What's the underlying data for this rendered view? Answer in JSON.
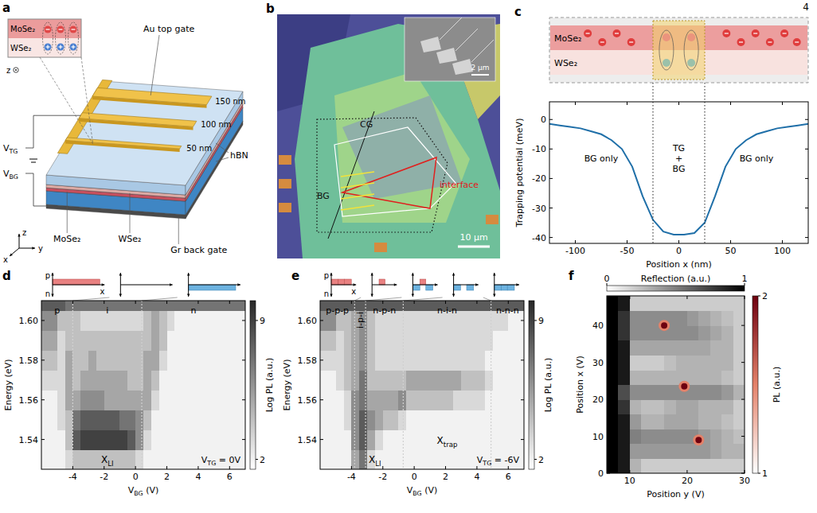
{
  "page_number": "4",
  "diagrams": {
    "a": {
      "panel": "a",
      "inset_layers": [
        "MoSe₂",
        "WSe₂"
      ],
      "inset_axis": "z",
      "gate": "Au top gate",
      "finger_widths": [
        "150 nm",
        "100 nm",
        "50 nm"
      ],
      "voltages": [
        {
          "base": "V",
          "sub": "TG"
        },
        {
          "base": "V",
          "sub": "BG"
        }
      ],
      "hbn": "hBN",
      "layers": [
        "MoSe₂",
        "WSe₂"
      ],
      "back_gate": "Gr back gate",
      "axes": [
        "x",
        "y",
        "z"
      ]
    },
    "b": {
      "panel": "b",
      "gates": [
        "CG",
        "BG"
      ],
      "interface": "interface",
      "scale_bar": "10 µm",
      "inset_scale_bar": "2 µm"
    }
  },
  "chart_data": [
    {
      "panel": "c",
      "type": "line",
      "x_label": "Position x (nm)",
      "y_label": "Trapping potential (meV)",
      "x": [
        -125,
        -115,
        -105,
        -95,
        -85,
        -75,
        -65,
        -55,
        -45,
        -35,
        -25,
        -15,
        -5,
        5,
        15,
        25,
        35,
        45,
        55,
        65,
        75,
        85,
        95,
        105,
        115,
        125
      ],
      "values": [
        -1.5,
        -2,
        -2.5,
        -3,
        -4,
        -5,
        -7,
        -10,
        -16,
        -26,
        -34,
        -38,
        -39,
        -39,
        -38.5,
        -35,
        -26,
        -16,
        -10,
        -7,
        -5,
        -4,
        -3,
        -2.5,
        -2,
        -1.5
      ],
      "color": "#1f6fa8",
      "xlim": [
        -125,
        125
      ],
      "xticks": [
        -100,
        -50,
        0,
        50,
        100
      ],
      "ylim": [
        -42,
        6
      ],
      "yticks": [
        -40,
        -30,
        -20,
        -10,
        0
      ],
      "dividers": [
        -25,
        25
      ],
      "region_labels": [
        "BG only",
        "TG + BG",
        "BG only"
      ],
      "schematic_layers": [
        "MoSe₂",
        "WSe₂"
      ]
    },
    {
      "panel": "d",
      "type": "heatmap",
      "x_label": {
        "base": "V",
        "sub": "BG",
        "rest": " (V)"
      },
      "y_label": "Energy (eV)",
      "xlim": [
        -6,
        7
      ],
      "xticks": [
        -4,
        -2,
        0,
        2,
        4,
        6
      ],
      "ylim": [
        1.525,
        1.61
      ],
      "yticks": [
        1.54,
        1.56,
        1.58,
        {
          "value": 1.6,
          "label": "1.60"
        }
      ],
      "x_bins": [
        -6,
        -5.5,
        -5,
        -4.5,
        -4,
        -3.5,
        -3,
        -2.5,
        -2,
        -1.5,
        -1,
        -0.5,
        0,
        0.5,
        1,
        1.5,
        2,
        2.5,
        3,
        3.5,
        4,
        4.5,
        5,
        5.5,
        6,
        6.5,
        7
      ],
      "y_bins": [
        1.525,
        1.535,
        1.545,
        1.555,
        1.565,
        1.575,
        1.585,
        1.595,
        1.605,
        1.61
      ],
      "cells": [
        [
          2,
          2,
          2,
          3,
          4,
          4,
          4,
          4,
          4,
          4,
          4,
          4,
          3,
          2,
          2,
          2,
          2,
          2,
          2,
          2,
          2,
          2,
          2,
          2,
          2,
          2
        ],
        [
          2,
          2,
          2,
          4,
          8,
          9,
          9,
          9,
          9,
          9,
          9,
          8,
          6,
          3,
          2,
          2,
          2,
          2,
          2,
          2,
          2,
          2,
          2,
          2,
          2,
          2
        ],
        [
          2,
          2,
          3,
          4,
          7,
          8,
          8,
          8,
          8,
          8,
          7,
          7,
          6,
          4,
          2,
          2,
          2,
          2,
          2,
          2,
          2,
          2,
          2,
          2,
          2,
          2
        ],
        [
          2,
          2,
          3,
          5,
          5,
          6,
          6,
          6,
          5,
          5,
          5,
          5,
          5,
          5,
          3,
          2,
          2,
          2,
          2,
          2,
          2,
          2,
          2,
          2,
          2,
          2
        ],
        [
          3,
          3,
          3,
          5,
          4,
          5,
          5,
          5,
          5,
          5,
          5,
          4,
          4,
          5,
          4,
          2,
          2,
          2,
          2,
          2,
          2,
          2,
          2,
          2,
          2,
          2
        ],
        [
          4,
          4,
          3,
          5,
          4,
          4,
          5,
          4,
          4,
          4,
          4,
          4,
          4,
          5,
          5,
          3,
          2,
          2,
          2,
          2,
          2,
          2,
          2,
          2,
          2,
          2
        ],
        [
          5,
          5,
          3,
          4,
          4,
          4,
          4,
          4,
          4,
          4,
          4,
          4,
          4,
          4,
          5,
          4,
          2,
          2,
          2,
          2,
          2,
          2,
          2,
          2,
          2,
          2
        ],
        [
          6,
          6,
          4,
          4,
          4,
          3,
          3,
          3,
          3,
          3,
          3,
          3,
          3,
          4,
          5,
          4,
          3,
          2,
          2,
          2,
          2,
          2,
          2,
          2,
          2,
          2
        ],
        [
          8,
          8,
          8,
          7,
          7,
          7,
          7,
          7,
          7,
          7,
          7,
          7,
          7,
          7,
          7,
          7,
          7,
          7,
          7,
          7,
          7,
          7,
          7,
          7,
          7,
          7
        ]
      ],
      "colorbar": {
        "label": "Log PL (a.u.)",
        "range": [
          1.5,
          10
        ],
        "ticks": [
          2,
          9
        ]
      },
      "dividers": [
        -4,
        0.4
      ],
      "region_labels": [
        "p",
        "i",
        "n"
      ],
      "peak_labels": [
        {
          "base": "X",
          "sub": "LI"
        }
      ],
      "gate_label": {
        "base": "V",
        "sub": "TG",
        "rest": " = 0V"
      },
      "inset_labels": [
        "p",
        "n",
        "x"
      ]
    },
    {
      "panel": "e",
      "type": "heatmap",
      "x_label": {
        "base": "V",
        "sub": "BG",
        "rest": " (V)"
      },
      "y_label": "Energy (eV)",
      "xlim": [
        -6,
        7
      ],
      "xticks": [
        -4,
        -2,
        0,
        2,
        4,
        6
      ],
      "ylim": [
        1.525,
        1.61
      ],
      "yticks": [
        1.54,
        1.56,
        1.58,
        {
          "value": 1.6,
          "label": "1.60"
        }
      ],
      "x_bins": [
        -6,
        -5.5,
        -5,
        -4.5,
        -4,
        -3.5,
        -3,
        -2.5,
        -2,
        -1.5,
        -1,
        -0.5,
        0,
        0.5,
        1,
        1.5,
        2,
        2.5,
        3,
        3.5,
        4,
        4.5,
        5,
        5.5,
        6,
        6.5,
        7
      ],
      "y_bins": [
        1.525,
        1.535,
        1.545,
        1.555,
        1.565,
        1.575,
        1.585,
        1.595,
        1.605,
        1.61
      ],
      "cells": [
        [
          2,
          2,
          2,
          2,
          5,
          7,
          3,
          2,
          2,
          2,
          2,
          2,
          2,
          2,
          2,
          2,
          2,
          2,
          2,
          2,
          2,
          2,
          2,
          2,
          2,
          2
        ],
        [
          2,
          2,
          2,
          2,
          6,
          8,
          5,
          3,
          2,
          2,
          2,
          2,
          2,
          2,
          2,
          2,
          2,
          2,
          2,
          2,
          2,
          2,
          2,
          2,
          2,
          2
        ],
        [
          2,
          2,
          2,
          3,
          6,
          8,
          6,
          5,
          4,
          4,
          3,
          2,
          2,
          2,
          2,
          2,
          2,
          2,
          2,
          2,
          2,
          2,
          2,
          2,
          2,
          2
        ],
        [
          2,
          2,
          2,
          3,
          6,
          7,
          5,
          5,
          5,
          5,
          6,
          4,
          4,
          4,
          4,
          4,
          4,
          3,
          3,
          3,
          3,
          2,
          2,
          2,
          2,
          2
        ],
        [
          2,
          2,
          3,
          4,
          5,
          7,
          4,
          4,
          4,
          4,
          4,
          5,
          5,
          5,
          5,
          5,
          5,
          5,
          4,
          4,
          4,
          3,
          2,
          2,
          2,
          2
        ],
        [
          3,
          3,
          3,
          4,
          5,
          6,
          4,
          3,
          3,
          3,
          3,
          3,
          3,
          3,
          3,
          3,
          3,
          3,
          3,
          3,
          3,
          2,
          2,
          2,
          2,
          2
        ],
        [
          4,
          4,
          3,
          4,
          5,
          6,
          4,
          3,
          3,
          3,
          3,
          3,
          3,
          3,
          3,
          3,
          3,
          3,
          3,
          3,
          3,
          3,
          2,
          2,
          2,
          2
        ],
        [
          6,
          6,
          4,
          4,
          5,
          6,
          4,
          3,
          3,
          3,
          3,
          3,
          3,
          3,
          3,
          3,
          3,
          3,
          3,
          3,
          3,
          3,
          3,
          3,
          2,
          2
        ],
        [
          8,
          8,
          8,
          8,
          8,
          8,
          8,
          8,
          8,
          8,
          8,
          8,
          8,
          8,
          8,
          8,
          8,
          8,
          8,
          8,
          8,
          8,
          8,
          8,
          8,
          8
        ]
      ],
      "colorbar": {
        "label": "Log PL (a.u.)",
        "range": [
          1.5,
          10
        ],
        "ticks": [
          2,
          9
        ]
      },
      "dividers": [
        -3.8,
        -3.1,
        -0.7,
        4.9
      ],
      "region_labels": [
        "p-p-p",
        "i-p-i",
        "n-p-n",
        "n-i-n",
        "n-n-n"
      ],
      "peak_labels": [
        {
          "base": "X",
          "sub": "LI"
        },
        {
          "base": "X",
          "sub": "trap"
        }
      ],
      "gate_label": {
        "base": "V",
        "sub": "TG",
        "rest": " = -6V"
      },
      "inset_labels": [
        "p",
        "n",
        "x"
      ]
    },
    {
      "panel": "f",
      "type": "heatmap",
      "x_label": "Position y (V)",
      "y_label": "Position x (V)",
      "xlim": [
        6,
        30
      ],
      "xticks": [
        10,
        20,
        30
      ],
      "ylim": [
        0,
        48
      ],
      "yticks": [
        0,
        10,
        20,
        30,
        40
      ],
      "x_bins": [
        6,
        8,
        10,
        12,
        14,
        16,
        18,
        20,
        22,
        24,
        26,
        28,
        30
      ],
      "y_bins": [
        0,
        4,
        8,
        12,
        16,
        20,
        24,
        28,
        32,
        36,
        40,
        44,
        48
      ],
      "cells": [
        [
          1,
          0.9,
          0.3,
          0.2,
          0.2,
          0.2,
          0.2,
          0.2,
          0.2,
          0.2,
          0.2,
          0.2
        ],
        [
          1,
          0.9,
          0.4,
          0.4,
          0.4,
          0.4,
          0.4,
          0.4,
          0.4,
          0.35,
          0.3,
          0.3
        ],
        [
          1,
          0.9,
          0.5,
          0.45,
          0.45,
          0.45,
          0.45,
          0.45,
          0.4,
          0.35,
          0.3,
          0.25
        ],
        [
          1,
          0.9,
          0.4,
          0.3,
          0.3,
          0.35,
          0.35,
          0.35,
          0.3,
          0.3,
          0.25,
          0.2
        ],
        [
          1,
          0.8,
          0.3,
          0.25,
          0.25,
          0.3,
          0.35,
          0.35,
          0.3,
          0.3,
          0.3,
          0.2
        ],
        [
          1,
          0.7,
          0.45,
          0.45,
          0.45,
          0.45,
          0.45,
          0.45,
          0.45,
          0.45,
          0.4,
          0.3
        ],
        [
          1,
          0.9,
          0.3,
          0.3,
          0.3,
          0.3,
          0.3,
          0.3,
          0.3,
          0.3,
          0.25,
          0.2
        ],
        [
          1,
          0.9,
          0.2,
          0.2,
          0.2,
          0.25,
          0.3,
          0.3,
          0.3,
          0.3,
          0.3,
          0.2
        ],
        [
          1,
          0.9,
          0.35,
          0.35,
          0.35,
          0.35,
          0.35,
          0.35,
          0.35,
          0.3,
          0.3,
          0.2
        ],
        [
          1,
          0.8,
          0.45,
          0.45,
          0.45,
          0.45,
          0.45,
          0.45,
          0.4,
          0.35,
          0.3,
          0.2
        ],
        [
          1,
          0.8,
          0.45,
          0.45,
          0.45,
          0.45,
          0.45,
          0.4,
          0.35,
          0.3,
          0.25,
          0.2
        ],
        [
          1,
          0.9,
          0.2,
          0.2,
          0.2,
          0.2,
          0.2,
          0.2,
          0.2,
          0.2,
          0.2,
          0.2
        ]
      ],
      "colorbar": {
        "label": "Reflection (a.u.)",
        "range": [
          0,
          1
        ],
        "ticks": [
          0,
          1
        ]
      },
      "points": {
        "x": [
          16,
          19.5,
          22
        ],
        "y": [
          40,
          23.5,
          9
        ],
        "values": [
          2,
          2,
          2
        ]
      },
      "points_colorbar": {
        "label": "PL (a.u.)",
        "range": [
          1,
          2
        ],
        "ticks": [
          1,
          2
        ]
      }
    }
  ]
}
